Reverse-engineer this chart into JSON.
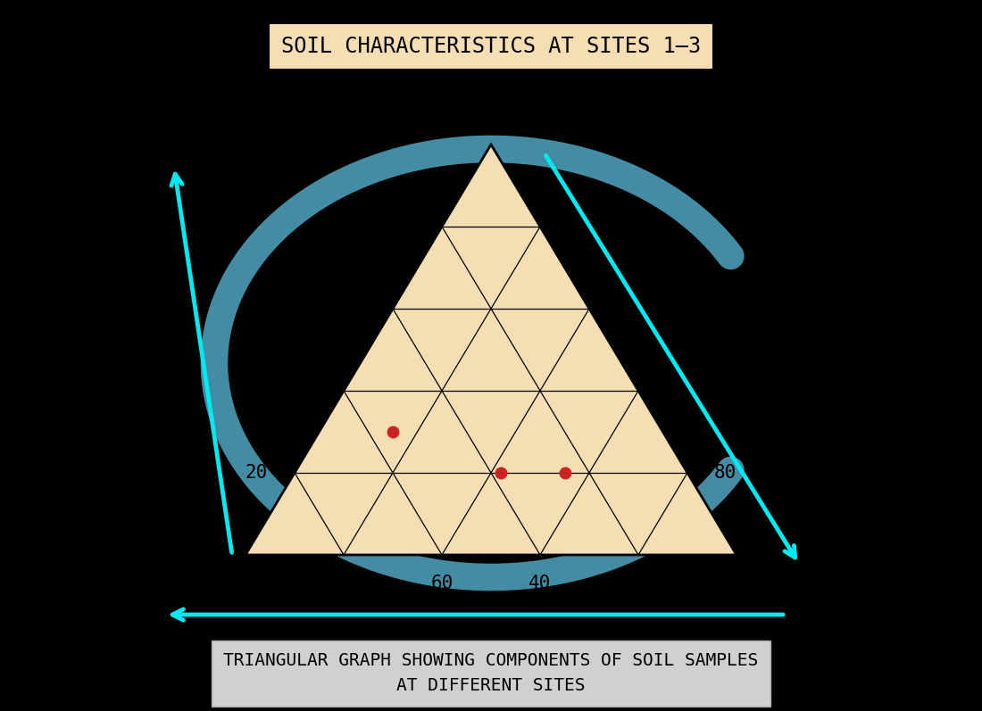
{
  "title": "SOIL CHARACTERISTICS AT SITES 1–3",
  "subtitle": "TRIANGULAR GRAPH SHOWING COMPONENTS OF SOIL SAMPLES\nAT DIFFERENT SITES",
  "background_color": "#000000",
  "title_bg": "#f5deb3",
  "subtitle_bg": "#d0d0d0",
  "triangle_fill": "#f5deb3",
  "triangle_edge": "#000000",
  "arrow_color": "#00e8f0",
  "arc_color": "#5bbcdb",
  "tick_values": [
    20,
    40,
    60,
    80
  ],
  "red_points": [
    [
      0.3,
      0.55,
      0.15
    ],
    [
      0.2,
      0.38,
      0.42
    ],
    [
      0.2,
      0.25,
      0.55
    ]
  ],
  "point_color": "#cc2222",
  "point_size": 100
}
